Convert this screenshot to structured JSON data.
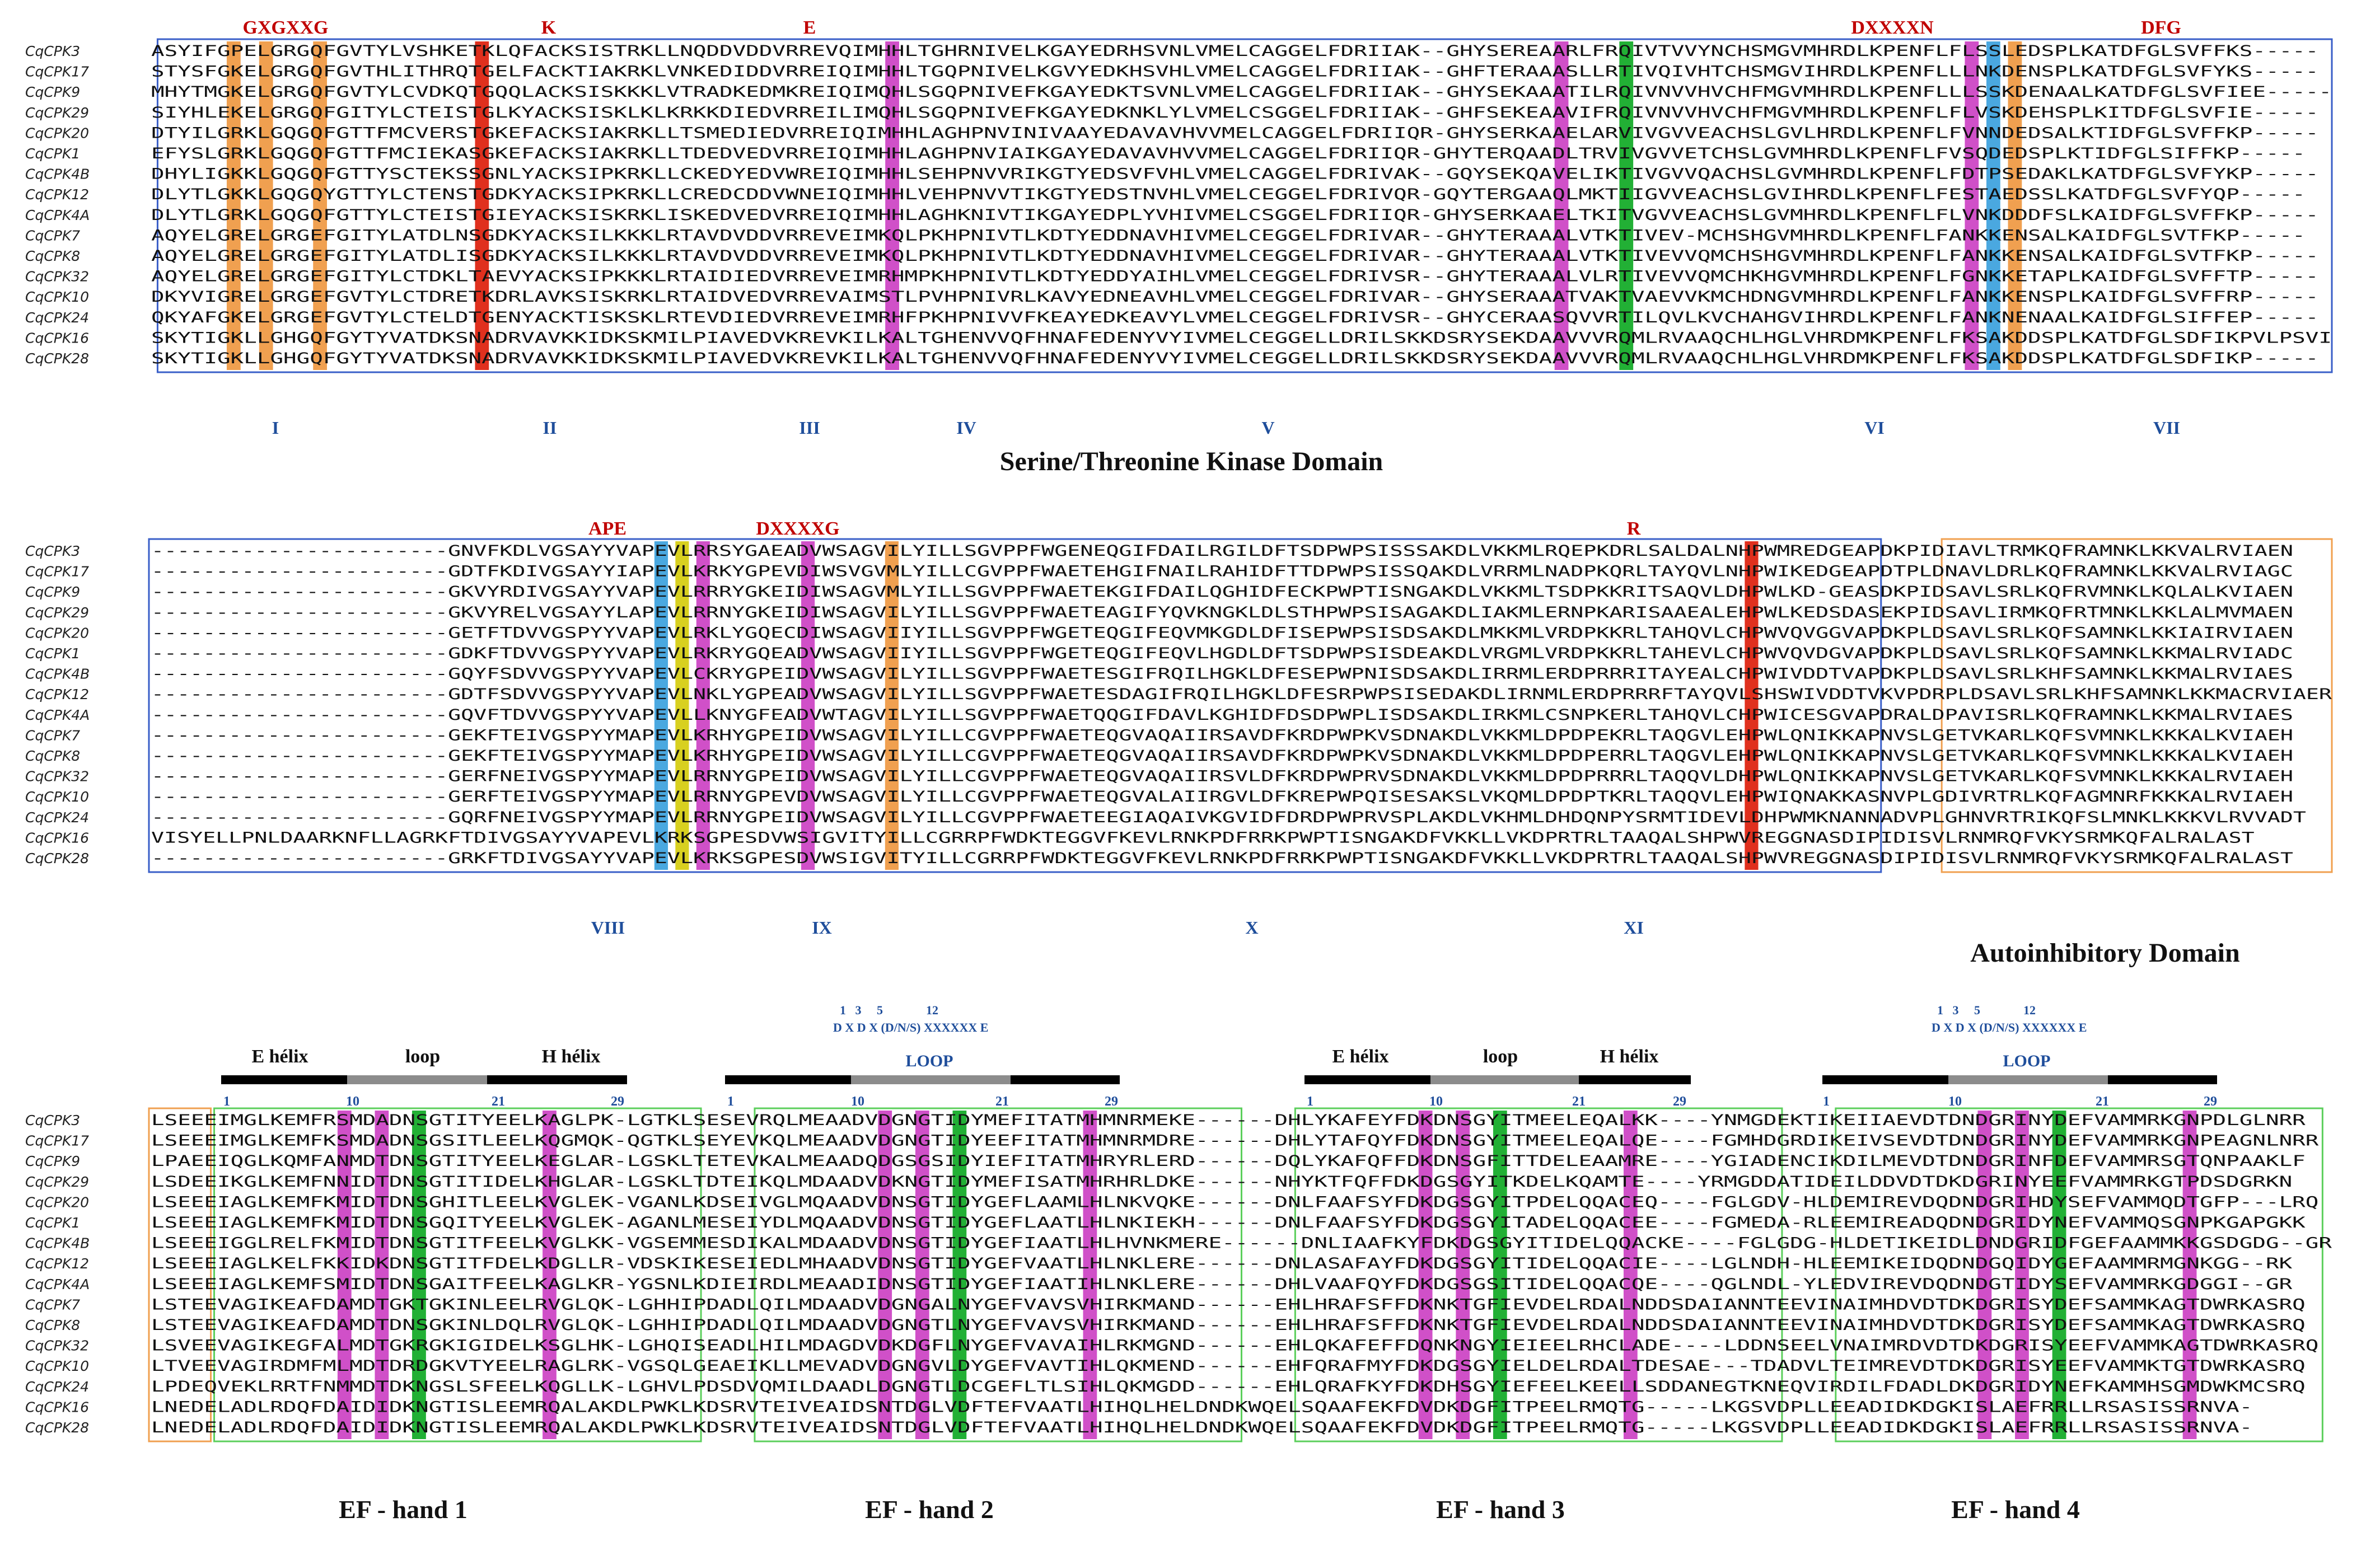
{
  "species_names": [
    "CqCPK3",
    "CqCPK17",
    "CqCPK9",
    "CqCPK29",
    "CqCPK20",
    "CqCPK1",
    "CqCPK4B",
    "CqCPK12",
    "CqCPK4A",
    "CqCPK7",
    "CqCPK8",
    "CqCPK32",
    "CqCPK10",
    "CqCPK24",
    "CqCPK16",
    "CqCPK28"
  ],
  "colors": {
    "orange": "#f0a050",
    "red": "#e0301e",
    "magenta": "#d050c8",
    "green": "#22b035",
    "yellow": "#d8d020",
    "blue_box": "#3a5fc8",
    "orange_box": "#f0a050",
    "green_box": "#5ccf5c",
    "cyan": "#4aa8e0",
    "label_red": "#c00000",
    "label_blue": "#1f4e9b"
  },
  "panel1": {
    "sequences": [
      "ASYIFGPELGRGQFGVTYLVSHKETKLQFACKSISTRKLLNQDDVDDVRREVQIMHHLTGHRNIVELKGAYEDRHSVNLVMELCAGGELFDRIIAK--GHYSEREAARLFRQIVTVVYNCHSMGVMHRDLKPENFLFLSSLEDSPLKATDFGLSVFFKS-----",
      "STYSFGKELGRGQFGVTHLITHRQTGELFACKTIAKRKLVNKEDIDDVRREIQIMHHLTGQPNIVELKGVYEDKHSVHLVMELCAGGELFDRIIAK--GHFTERAAASLLRTIVQIVHTCHSMGVIHRDLKPENFLLLNKDENSPLKATDFGLSVFYKS-----",
      "MHYTMGKELGRGQFGVTYLCVDKQTGQQLACKSISKKKLVTRADKEDMKREIQIMQHLSGQPNIVEFKGAYEDKTSVNLVMELCAGGELFDRIIAK--GHYSEKAAATILRQIVNVVHVCHFMGVMHRDLKPENFLLLSSKDENAALKATDFGLSVFIEE-----",
      "SIYHLEKELGRGQFGITYLCTEISTGLKYACKSISKLKLKRKKDIEDVRREILIMQHLSGQPNIVEFKGAYEDKNKLYLVMELCSGGELFDRIIAK--GHFSEKEAAVIFRQIVNVVHVCHFMGVMHRDLKPENFLFLVSKDEHSPLKITDFGLSVFIE-----",
      "DTYILGRKLGQGQFGTTFMCVERSTGKEFACKSIAKRKLLTSMEDIEDVRREIQIMHHLAGHPNVINIVAAYEDAVAVHVVMELCAGGELFDRIIQR-GHYSERKAAELARVIVGVVEACHSLGVLHRDLKPENFLFVNNDEDSALKTIDFGLSVFFKP-----",
      "EFYSLGRKLGQGQFGTTFMCIEKASGKEFACKSIAKRKLLTDEDVEDVRREIQIMHHLAGHPNVIAIKGAYEDAVAVHVVMELCAGGELFDRIIQR-GHYTERQAADLTRVIVGVVETCHSLGVMHRDLKPENFLFVSQDEDSPLKTIDFGLSIFFKP-----",
      "DHYLIGKKLGQGQFGTTYSCTEKSSGNLYACKSIPKRKLLCKEDYEDVWREIQIMHHLSEHPNVVRIKGTYEDSVFVHLVMELCAGGELFDRIVAK--GQYSEKQAVELIKTIVGVVQACHSLGVMHRDLKPENFLFDTPSEDAKLKATDFGLSVFYKP-----",
      "DLYTLGKKLGQGQYGTTYLCTENSTGDKYACKSIPKRKLLCREDCDDVWNEIQIMHHLVEHPNVVTIKGTYEDSTNVHLVMELCEGGELFDRIVQR-GQYTERGAAQLMKTIIGVVEACHSLGVIHRDLKPENFLFESTAEDSSLKATDFGLSVFYQP-----",
      "DLYTLGRKLGQGQFGTTYLCTEISTGIEYACKSISKRKLISKEDVEDVRREIQIMHHLAGHKNIVTIKGAYEDPLYVHIVMELCSGGELFDRIIQR-GHYSERKAAELTKITVGVVEACHSLGVMHRDLKPENFLFLVNKDDDFSLKAIDFGLSVFFKP-----",
      "AQYELGRELGRGEFGITYLATDLNSGDKYACKSILKKKLRTAVDVDDVRREVEIMKQLPKHPNIVTLKDTYEDDNAVHIVMELCEGGELFDRIVAR--GHYTERAAALVTKTIVEV-MCHSHGVMHRDLKPENFLFANKKENSALKAIDFGLSVTFKP-----",
      "AQYELGRELGRGEFGITYLATDLISGDKYACKSILKKKLRTAVDVDDVRREVEIMKQLPKHPNIVTLKDTYEDDNAVHIVMELCEGGELFDRIVAR--GHYTERAAALVTKTIVEVVQMCHSHGVMHRDLKPENFLFANKKENSALKAIDFGLSVTFKP-----",
      "AQYELGRELGRGEFGITYLCTDKLTAEVYACKSIPKKKLRTAIDIEDVRREVEIMRHMPKHPNIVTLKDTYEDDYAIHLVMELCEGGELFDRIVSR--GHYTERAAALVLRTIVEVVQMCHKHGVMHRDLKPENFLFGNKKETAPLKAIDFGLSVFFTP-----",
      "DKYVIGRELGRGEFGVTYLCTDRETKDRLAVKSISKRKLRTAIDVEDVRREVAIMSTLPVHPNIVRLKAVYEDNEAVHLVMELCEGGELFDRIVAR--GHYSERAAATVAKTVAEVVKMCHDNGVMHRDLKPENFLFANKKENSPLKAIDFGLSVFFRP-----",
      "QKYAFGKELGRGEFGVTYLCTELDTGENYACKTISKSKLRTEVDIEDVRREVEIMRHFPKHPNIVVFKEAYEDKEAVYLVMELCEGGELFDRIVSR--GHYCERAASQVVRTILQVLKVCHAHGVIHRDLKPENFLFANKNENAALKAIDFGLSIFFEP-----",
      "SKYTIGKLLGHGQFGYTYVATDKSNADRVAVKKIDKSKMILPIAVEDVKREVKILKALTGHENVVQFHNAFEDENYVYIVMELCEGGELLDRILSKKDSRYSEKDAAVVVRQMLRVAAQCHLHGLVHRDMKPENFLFKSAKDDSPLKATDFGLSDFIKPVLPSVI",
      "SKYTIGKLLGHGQFGYTYVATDKSNADRVAVKKIDKSKMILPIAVEDVKREVKILKALTGHENVVQFHNAFEDENYVYIVMELCEGGELLDRILSKKDSRYSEKDAAVVVRQMLRVAAQCHLHGLVHRDMKPENFLFKSAKDDSPLKATDFGLSDFIKP-----"
    ],
    "motifs": [
      "GXGXXG",
      "K",
      "E",
      "DXXXXN",
      "DFG"
    ],
    "subdomains": [
      "I",
      "II",
      "III",
      "IV",
      "V",
      "VI",
      "VII"
    ],
    "domain_title": "Serine/Threonine Kinase Domain"
  },
  "panel2": {
    "sequences": [
      "-----------------------GNVFKDLVGSAYYVAPEVLRRSYGAEADVWSAGVILYILLSGVPPFWGENEQGIFDAILRGILDFTSDPWPSISSSAKDLVKKMLRQEPKDRLSALDALNHPWMREDGEAPDKPIDIAVLTRMKQFRAMNKLKKVALRVIAEN",
      "-----------------------GDTFKDIVGSAYYIAPEVLKRKYGPEVDIWSVGVMLYILLCGVPPFWAETEHGIFNAILRAHIDFTTDPWPSISSQAKDLVRRMLNADPKQRLTAYQVLNHPWIKEDGEAPDTPLDNAVLDRLKQFRAMNKLKKVALRVIAGC",
      "-----------------------GKVYRDIVGSAYYVAPEVLRRRYGKEIDIWSAGVMLYILLSGVPPFWAETEKGIFDAILQGHIDFECKPWPTISNGAKDLVKKMLTSDPKKRITSAQVLDHPWLKD-GEASDKPIDSAVLSRLKQFRVMNKLKQLALKVIAEN",
      "-----------------------GKVYRELVGSAYYLAPEVLRRNYGKEIDIWSAGVILYILLSGVPPFWAETEAGIFYQVKNGKLDLSTHPWPSISAGAKDLIAKMLERNPKARISAAEALEHPWLKEDSDASEKPIDSAVLIRMKQFRTMNKLKKLALMVMAEN",
      "-----------------------GETFTDVVGSPYYVAPEVLRKLYGQECDIWSAGVIIYILLSGVPPFWGETEQGIFEQVMKGDLDFISEPWPSISDSAKDLMKKMLVRDPKKRLTAHQVLCHPWVQVGGVAPDKPLDSAVLSRLKQFSAMNKLKKIAIRVIAEN",
      "-----------------------GDKFTDVVGSPYYVAPEVLRKRYGQEADVWSAGVIIYILLSGVPPFWGETEQGIFEQVLHGDLDFTSDPWPSISDEAKDLVRGMLVRDPKKRLTAHEVLCHPWVQVDGVAPDKPLDSAVLSRLKQFSAMNKLKKMALRVIADC",
      "-----------------------GQYFSDVVGSPYYVAPEVLCKRYGPEIDVWSAGVILYILLSGVPPFWAETESGIFRQILHGKLDFESEPWPNISDSAKDLIRRMLERDPRRRITAYEALCHPWIVDDTVAPDKPLDSAVLSRLKHFSAMNKLKKMALRVIAES",
      "-----------------------GDTFSDVVGSPYYVAPEVLNKLYGPEADVWSAGVILYILLSGVPPFWAETESDAGIFRQILHGKLDFESRPWPSISEDAKDLIRNMLERDPRRRFTAYQVLSHSWIVDDTVKVPDRPLDSAVLSRLKHFSAMNKLKKMACRVIAER",
      "-----------------------GQVFTDVVGSPYYVAPEVLLKNYGFEADVWTAGVILYILLSGVPPFWAETQQGIFDAVLKGHIDFDSDPWPLISDSAKDLIRKMLCSNPKERLTAHQVLCHPWICESGVAPDRALDPAVISRLKQFRAMNKLKKMALRVIAES",
      "-----------------------GEKFTEIVGSPYYMAPEVLKRHYGPEIDVWSAGVILYILLCGVPPFWAETEQGVAQAIIRSAVDFKRDPWPKVSDNAKDLVKKMLDPDPEKRLTAQGVLEHPWLQNIKKAPNVSLGETVKARLKQFSVMNKLKKKALKVIAEH",
      "-----------------------GEKFTEIVGSPYYMAPEVLKRHYGPEIDVWSAGVILYILLCGVPPFWAETEQGVAQAIIRSAVDFKRDPWPKVSDNAKDLVKKMLDPDPERRLTAQGVLEHPWLQNIKKAPNVSLGETVKARLKQFSVMNKLKKKALKVIAEH",
      "-----------------------GERFNEIVGSPYYMAPEVLRRNYGPEIDVWSAGVILYILLCGVPPFWAETEQGVAQAIIRSVLDFKRDPWPRVSDNAKDLVKKMLDPDPRRRLTAQQVLDHPWLQNIKKAPNVSLGETVKARLKQFSVMNKLKKKALRVIAEH",
      "-----------------------GERFTEIVGSPYYMAPEVLRRNYGPEVDVWSAGVILYILLCGVPPFWAETEQGVALAIIRGVLDFKREPWPQISESAKSLVKQMLDPDPTKRLTAQQVLEHPWIQNAKKASNVPLGDIVRTRLKQFAGMNRFKKKALRVIAEH",
      "-----------------------GQRFNEIVGSPYYMAPEVLRRNYGPEIDVWSAGVILYILLCGVPPFWAETEEGIAQAIVKGVIDFDRDPWPRVSPLAKDLVKHMLDHDQNPYSRMTIDEVLDHPWMKNANNADVPLGHNVRTRIKQFSLMNKLKKKVLRVVADT",
      "VISYELLPNLDAARKNFLLAGRKFTDIVGSAYYVAPEVLKRKSGPESDVWSIGVITYILLCGRRPFWDKTEGGVFKEVLRNKPDFRRKPWPTISNGAKDFVKKLLVKDPRTRLTAAQALSHPWVREGGNASDIPIDISVLRNMRQFVKYSRMKQFALRALAST",
      "-----------------------GRKFTDIVGSAYYVAPEVLKRKSGPESDVWSIGVITYILLCGRRPFWDKTEGGVFKEVLRNKPDFRRKPWPTISNGAKDFVKKLLVKDPRTRLTAAQALSHPWVREGGNASDIPIDISVLRNMRQFVKYSRMKQFALRALAST"
    ],
    "motifs": [
      "APE",
      "DXXXXG",
      "R"
    ],
    "subdomains": [
      "VIII",
      "IX",
      "X",
      "XI"
    ],
    "domain_title": "Autoinhibitory Domain"
  },
  "panel3": {
    "sequences": [
      "LSEEEIMGLKEMFRSMDADNSGTITYEELKAGLPK-LGTKLSESEVRQLMEAADVDGNGTIDYMEFITATMHMNRMEKE------DHLYKAFEYFDKDNSGYITMEELEQALKK----YNMGDEKTIKEIIAEVDTDNDGRINYDEFVAMMRKGNPDLGLNRR",
      "LSEEEIMGLKEMFKSMDADNSGSITLEELKQGMQK-QGTKLSEYEVKQLMEAADVDGNGTIDYEEFITATMHMNRMDRE------DHLYTAFQYFDKDNSGYITMEELEQALQE----FGMHDGRDIKEIVSEVDTDNDGRINYDEFVAMMRKGNPEAGNLNRR",
      "LPAEEIQGLKQMFANMDTDNSGTITYEELKEGLAR-LGSKLTETEVKALMEAADQDGSGSIDYIEFITATMHRYRLERD------DQLYKAFQFFDKDNSGFITTDELEAAMRE----YGIADENCIKDILMEVDTDNDGRINFDEFVAMMRSGTQNPAAKLF",
      "LSDEEIKGLKEMFNNIDTDNSGTITIDELKHGLAR-LGSKLTDTEIKQLMDAADVDKNGTIDYMEFISATMHRHRLDKE------NHYKTFQFFDKDGSGYITKDELKQAMTE----YRMGDDATIDEILDDVDTDKDGRINYEEFVAMMRKGTPDSDGRKN",
      "LSEEEIAGLKEMFKMIDTDNSGHITLEELKVGLEK-VGANLKDSEIVGLMQAADVDNSGTIDYGEFLAAMLHLNKVQKE------DNLFAAFSYFDKDGSGYITPDELQQACEQ----FGLGDV-HLDEMIREVDQDNDGRIHDYSEFVAMMQDTGFP---LRQ",
      "LSEEEIAGLKEMFKMIDTDNSGQITYEELKVGLEK-AGANLMESEIYDLMQAADVDNSGTIDYGEFLAATLHLNKIEKH------DNLFAAFSYFDKDGSGYITADELQQACEE----FGMEDA-RLEEMIREADQDNDGRIDYNEFVAMMQSGNPKGAPGKK",
      "LSEEEIGGLRELFKMIDTDNSGTITFEELKVGLKK-VGSEMMESDIKALMDAADVDNSGTIDYGEFIAATLHLHVNKMERE------DNLIAAFKYFDKDGSGYITIDELQQACKE----FGLGDG-HLDETIKEIDLDNDGRIDFGEFAAMMKKGSDGDG--GR",
      "LSEEEIAGLKELFKKIDKDNSGTITFDELKDGLLR-VDSKIKESEIEDLMHAADVDNSGTIDYGEFVAATLHLNKLERE------DNLASAFAYFDKDGSGYITIDELQQACIE----LGLNDH-HLEEMIKEIDQDNDGQIDYGEFAAMMRMGNKGG--RK",
      "LSEEEIAGLKEMFSMIDTDNSGAITFEELKAGLKR-YGSNLKDIEIRDLMEAADIDNSGTIDYGEFIAATIHLNKLERE------DHLVAAFQYFDKDGSGSITIDELQQACQE----QGLNDL-YLEDVIREVDQDNDGTIDYSEFVAMMRKGDGGI--GR",
      "LSTEEVAGIKEAFDAMDTGKTGKINLEELRVGLQK-LGHHIPDADLQILMDAADVDGNGALNYGEFVAVSVHIRKMAND------EHLHRAFSFFDKNKTGFIEVDELRDALNDDSDAIANNTEEVINAIMHDVDTDKDGRISYDEFSAMMKAGTDWRKASRQ",
      "LSTEEVAGIKEAFDAMDTDNSGKINLDQLRVGLQK-LGHHIPDADLQILMDAADVDGNGTLNYGEFVAVSVHIRKMAND------EHLHRAFSFFDKNKTGFIEVDELRDALNDDSDAIANNTEEVINAIMHDVDTDKDGRISYDEFSAMMKAGTDWRKASRQ",
      "LSVEEVAGIKEGFALMDTGKRGKIGIDELKSGLHK-LGHQISEADLHILMDAGDVDKDGFLNYGEFVAVAIHLRKMGND------EHLQKAFEFFDQNKNGYIEIEELRHCLADE----LDDNSEELVNAIMRDVDTDKDGRISYEEFVAMMKAGTDWRKASRQ",
      "LTVEEVAGIRDMFMLMDTDRDGKVTYEELRAGLRK-VGSQLGEAEIKLLMEVADVDGNGVLDYGEFVAVTIHLQKMEND------EHFQRAFMYFDKDGSGYIELDELRDALTDESAE---TDADVLTEIMREVDTDKDGRISYEEFVAMMKTGTDWRKASRQ",
      "LPDEQVEKLRRTFNMMDTDKNGSLSFEELKQGLLK-LGHVLPDSDVQMILDAADLDGNGTLDCGEFLTLSIHLQKMGDD------EHLQRAFKYFDKDHSGYIEFEELKEELLSDDANEGTKNEQVIRDILFDADLDKDGRIDYNEFKAMMHSGMDWKMCSRQ",
      "LNEDELADLRDQFDAIDIDKNGTISLEEMRQALAKDLPWKLKDSRVTEIVEAIDSNTDGLVDFTEFVAATLHIHQLHELDNDKWQELSQAAFEKFDVDKDGFITPEELRMQTG-----LKGSVDPLLEEADIDKDGKISLAEFRRLLRSASISSRNVA-",
      "LNEDELADLRDQFDAIDIDKNGTISLEEMRQALAKDLPWKLKDSRVTEIVEAIDSNTDGLVDFTEFVAATLHIHQLHELDNDKWQELSQAAFEKFDVDKDGFITPEELRMQTG-----LKGSVDPLLEEADIDKDGKISLAEFRRLLRSASISSRNVA-"
    ],
    "ef_hands": [
      "EF - hand 1",
      "EF - hand 2",
      "EF - hand 3",
      "EF - hand 4"
    ],
    "secondary": {
      "e_helix": "E hélix",
      "loop": "loop",
      "h_helix": "H hélix"
    },
    "loop_label": "LOOP",
    "consensus_positions": "1   3     5              12",
    "consensus_motif": "D X D X (D/N/S) XXXXXX E",
    "positions": [
      "1",
      "10",
      "21",
      "29"
    ]
  }
}
